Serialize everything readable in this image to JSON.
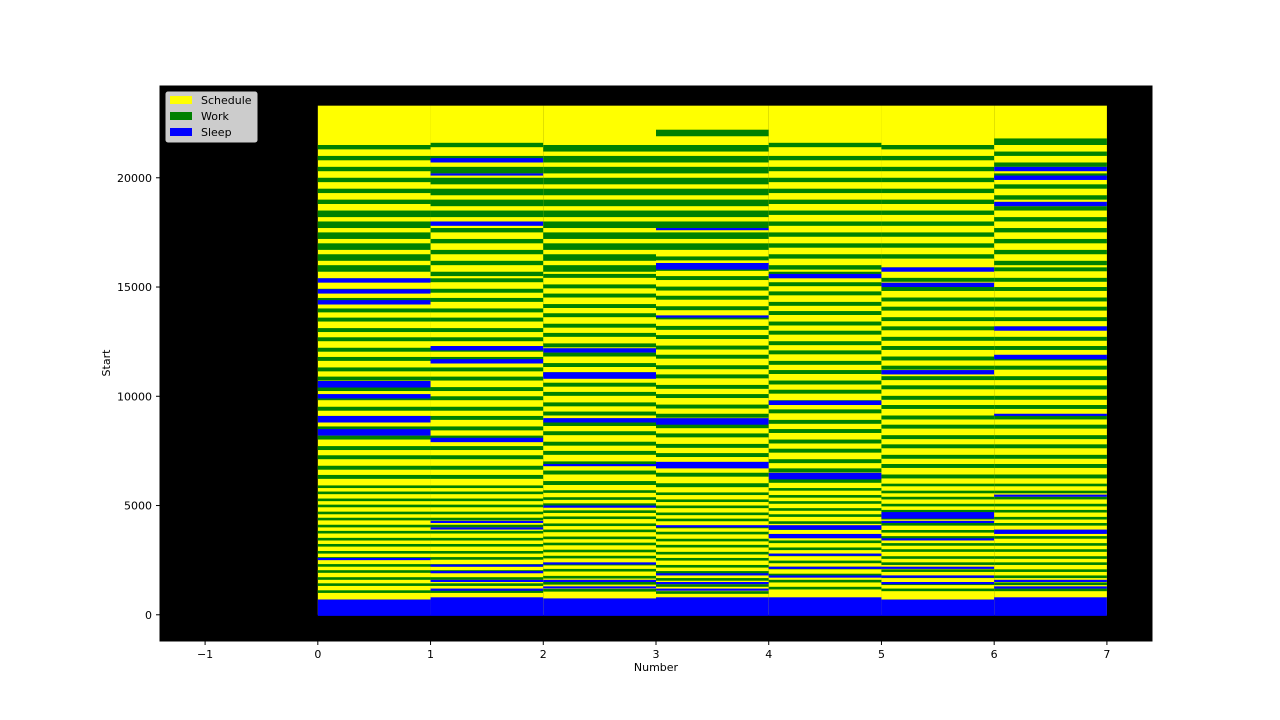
{
  "chart_data": {
    "type": "bar",
    "title": "",
    "xlabel": "Number",
    "ylabel": "Start",
    "xlim": [
      -1.4,
      7.4
    ],
    "ylim": [
      -1200,
      24200
    ],
    "x_ticks": [
      -1,
      0,
      1,
      2,
      3,
      4,
      5,
      6,
      7
    ],
    "x_tick_labels": [
      "−1",
      "0",
      "1",
      "2",
      "3",
      "4",
      "5",
      "6",
      "7"
    ],
    "y_ticks": [
      0,
      5000,
      10000,
      15000,
      20000
    ],
    "y_tick_labels": [
      "0",
      "5000",
      "10000",
      "15000",
      "20000"
    ],
    "plot_background": "#000000",
    "grid": false,
    "legend": {
      "placement": "top-left"
    },
    "series": [
      {
        "name": "Schedule",
        "color": "#ffff00"
      },
      {
        "name": "Work",
        "color": "#008000"
      },
      {
        "name": "Sleep",
        "color": "#0000ff"
      }
    ],
    "columns": [
      {
        "x_start": 0,
        "x_end": 1,
        "top": 23300,
        "stripe_top": 21500,
        "sleep_bottom": 700,
        "work_boundaries": [
          21500,
          21300,
          21000,
          20800,
          20500,
          20300,
          20000,
          19800,
          19500,
          19300,
          19000,
          18800,
          18500,
          18200,
          18000,
          17700,
          17500,
          17200,
          17000,
          16700,
          16500,
          16200,
          16000,
          15700,
          15500
        ],
        "sleep_bands": [
          [
            15200,
            15400
          ],
          [
            14700,
            14900
          ],
          [
            14200,
            14400
          ],
          [
            10400,
            10700
          ],
          [
            9900,
            10100
          ],
          [
            8800,
            9100
          ],
          [
            8200,
            8500
          ],
          [
            2500,
            2600
          ]
        ]
      },
      {
        "x_start": 1,
        "x_end": 2,
        "top": 23300,
        "stripe_top": 21600,
        "sleep_bottom": 800,
        "work_boundaries": [
          21600,
          21400,
          21000,
          20700,
          20500,
          20200,
          20000,
          19700,
          19500,
          19200,
          19000,
          18700,
          18500,
          18200,
          17700,
          17500,
          17200,
          17000,
          16700,
          16500,
          16200,
          16000,
          15700,
          15500
        ],
        "sleep_bands": [
          [
            20700,
            20900
          ],
          [
            20100,
            20200
          ],
          [
            17800,
            18000
          ],
          [
            12100,
            12300
          ],
          [
            11500,
            11700
          ],
          [
            7900,
            8100
          ],
          [
            4200,
            4300
          ],
          [
            3900,
            4000
          ],
          [
            2200,
            2300
          ],
          [
            1900,
            2000
          ],
          [
            1500,
            1600
          ],
          [
            1100,
            1200
          ]
        ]
      },
      {
        "x_start": 2,
        "x_end": 3,
        "top": 23300,
        "stripe_top": 21500,
        "sleep_bottom": 750,
        "work_boundaries": [
          21500,
          21200,
          21000,
          20700,
          20500,
          20200,
          20000,
          19700,
          19500,
          19200,
          19000,
          18700,
          18500,
          18200,
          18000,
          17700,
          17500,
          17200,
          17000,
          16700,
          16500,
          16200,
          16000,
          15700
        ],
        "sleep_bands": [
          [
            12000,
            12200
          ],
          [
            10800,
            11100
          ],
          [
            8800,
            9000
          ],
          [
            6800,
            6900
          ],
          [
            4900,
            5000
          ],
          [
            2300,
            2400
          ],
          [
            1500,
            1600
          ],
          [
            1200,
            1300
          ]
        ]
      },
      {
        "x_start": 3,
        "x_end": 4,
        "top": 23300,
        "stripe_top": 22200,
        "sleep_bottom": 800,
        "work_boundaries": [
          22200,
          21900,
          21500,
          21200,
          21000,
          20700,
          20500,
          20200,
          20000,
          19700,
          19500,
          19200,
          19000,
          18700,
          18500,
          18200,
          18000,
          17700,
          17500,
          17200,
          17000,
          16700,
          16500
        ],
        "sleep_bands": [
          [
            17600,
            17700
          ],
          [
            15800,
            16100
          ],
          [
            13600,
            13700
          ],
          [
            8700,
            9000
          ],
          [
            6700,
            7000
          ],
          [
            4000,
            4100
          ],
          [
            1800,
            1900
          ],
          [
            1400,
            1500
          ],
          [
            1100,
            1200
          ]
        ]
      },
      {
        "x_start": 4,
        "x_end": 5,
        "top": 23300,
        "stripe_top": 21600,
        "sleep_bottom": 800,
        "work_boundaries": [
          21600,
          21400,
          21000,
          20800,
          20500,
          20300,
          20000,
          19800,
          19500,
          19300,
          19000,
          18800,
          18500,
          18300,
          18000,
          17800,
          17500,
          17300,
          17000,
          16800,
          16500,
          16300,
          16000,
          15800
        ],
        "sleep_bands": [
          [
            15400,
            15600
          ],
          [
            9600,
            9800
          ],
          [
            6200,
            6500
          ],
          [
            3900,
            4100
          ],
          [
            3500,
            3700
          ],
          [
            2700,
            2800
          ],
          [
            2100,
            2200
          ],
          [
            1700,
            1800
          ]
        ]
      },
      {
        "x_start": 5,
        "x_end": 6,
        "top": 23300,
        "stripe_top": 21500,
        "sleep_bottom": 700,
        "work_boundaries": [
          21500,
          21300,
          21000,
          20800,
          20500,
          20300,
          20000,
          19800,
          19500,
          19300,
          19000,
          18800,
          18500,
          18300,
          18000,
          17800,
          17500,
          17300,
          17000,
          16800,
          16500,
          16300,
          16000
        ],
        "sleep_bands": [
          [
            15700,
            15900
          ],
          [
            15000,
            15200
          ],
          [
            11000,
            11200
          ],
          [
            4400,
            4700
          ],
          [
            4200,
            4300
          ],
          [
            3400,
            3500
          ],
          [
            2100,
            2200
          ],
          [
            1700,
            1800
          ],
          [
            1400,
            1500
          ]
        ]
      },
      {
        "x_start": 6,
        "x_end": 7,
        "top": 23300,
        "stripe_top": 21800,
        "sleep_bottom": 800,
        "work_boundaries": [
          21800,
          21500,
          21200,
          21000,
          20700,
          20500,
          20200,
          20000,
          19700,
          19500,
          19200,
          19000,
          18700,
          18500,
          18200,
          18000,
          17700,
          17500,
          17200,
          17000,
          16700,
          16500,
          16200,
          16000
        ],
        "sleep_bands": [
          [
            20300,
            20500
          ],
          [
            19900,
            20100
          ],
          [
            18700,
            18900
          ],
          [
            13000,
            13200
          ],
          [
            11700,
            11900
          ],
          [
            9100,
            9200
          ],
          [
            5400,
            5500
          ],
          [
            3700,
            3900
          ],
          [
            1500,
            1600
          ],
          [
            1200,
            1300
          ]
        ]
      }
    ]
  }
}
